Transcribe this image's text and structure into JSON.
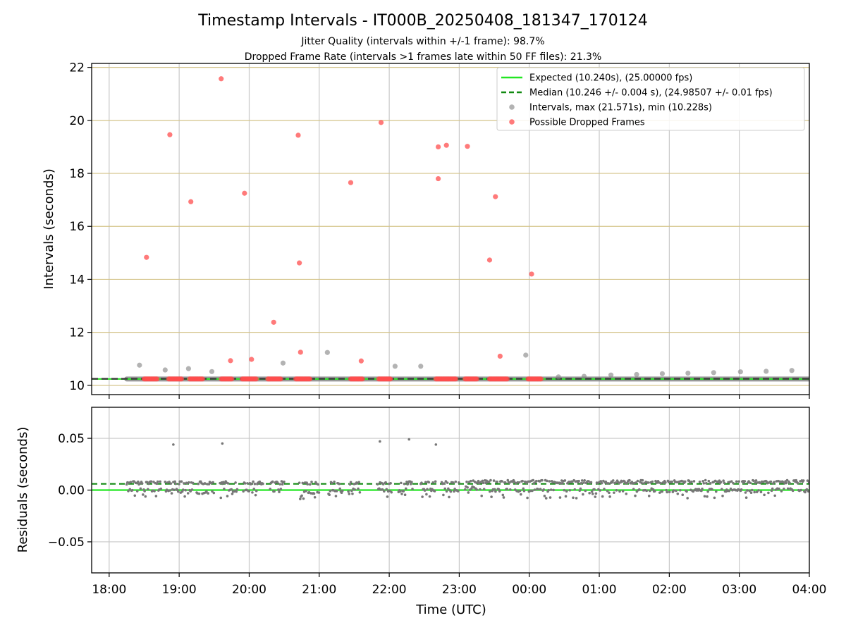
{
  "chart_data": [
    {
      "type": "scatter",
      "title": "Timestamp Intervals - IT000B_20250408_181347_170124",
      "subtitles": [
        "Jitter Quality (intervals within +/-1 frame): 98.7%",
        "Dropped Frame Rate (intervals >1 frames late within 50 FF files): 21.3%"
      ],
      "xlabel": "",
      "ylabel": "Intervals (seconds)",
      "xlim": [
        "17:45",
        "04:00"
      ],
      "ylim": [
        9.65,
        22.15
      ],
      "xticks": [
        "18:00",
        "19:00",
        "20:00",
        "21:00",
        "22:00",
        "23:00",
        "00:00",
        "01:00",
        "02:00",
        "03:00",
        "04:00"
      ],
      "yticks": [
        10,
        12,
        14,
        16,
        18,
        20,
        22
      ],
      "grid": true,
      "legend_position": "top-right",
      "series": [
        {
          "name": "Expected (10.240s), (25.00000 fps)",
          "kind": "line",
          "color": "#22e622",
          "y": 10.24,
          "x_range": [
            "17:45",
            "04:00"
          ]
        },
        {
          "name": "Median (10.246 +/- 0.004 s), (24.98507 +/- 0.01 fps)",
          "kind": "dashed-line",
          "color": "#128a12",
          "y": 10.246,
          "x_range": [
            "17:45",
            "04:00"
          ]
        },
        {
          "name": "Intervals, max (21.571s), min (10.228s)",
          "kind": "scatter",
          "color": "#808080",
          "clusters": [
            [
              "18:15",
              "04:00",
              10.24
            ]
          ],
          "points": [
            [
              "18:26",
              10.76
            ],
            [
              "18:48",
              10.58
            ],
            [
              "19:08",
              10.63
            ],
            [
              "19:28",
              10.52
            ],
            [
              "20:29",
              10.84
            ],
            [
              "21:07",
              11.24
            ],
            [
              "22:05",
              10.72
            ],
            [
              "22:27",
              10.72
            ],
            [
              "23:57",
              11.14
            ],
            [
              "00:25",
              10.32
            ],
            [
              "00:47",
              10.34
            ],
            [
              "01:10",
              10.39
            ],
            [
              "01:32",
              10.41
            ],
            [
              "01:54",
              10.44
            ],
            [
              "02:16",
              10.46
            ],
            [
              "02:38",
              10.48
            ],
            [
              "03:01",
              10.51
            ],
            [
              "03:23",
              10.53
            ],
            [
              "03:45",
              10.56
            ]
          ]
        },
        {
          "name": "Possible Dropped Frames",
          "kind": "scatter",
          "color": "#ff4d4d",
          "clusters": [
            [
              "18:30",
              "18:41",
              10.24
            ],
            [
              "18:51",
              "19:02",
              10.24
            ],
            [
              "19:09",
              "19:20",
              10.24
            ],
            [
              "19:36",
              "19:45",
              10.24
            ],
            [
              "19:54",
              "20:06",
              10.24
            ],
            [
              "20:16",
              "20:27",
              10.24
            ],
            [
              "20:40",
              "20:52",
              10.24
            ],
            [
              "21:27",
              "21:37",
              10.24
            ],
            [
              "21:51",
              "22:01",
              10.24
            ],
            [
              "22:40",
              "22:57",
              10.24
            ],
            [
              "23:05",
              "23:15",
              10.24
            ],
            [
              "23:26",
              "23:41",
              10.24
            ],
            [
              "23:59",
              "00:10",
              10.24
            ]
          ],
          "points": [
            [
              "18:32",
              14.83
            ],
            [
              "18:52",
              19.46
            ],
            [
              "19:10",
              16.93
            ],
            [
              "19:36",
              21.571
            ],
            [
              "19:44",
              10.93
            ],
            [
              "19:56",
              17.25
            ],
            [
              "20:02",
              10.98
            ],
            [
              "20:21",
              12.38
            ],
            [
              "20:42",
              19.44
            ],
            [
              "20:43",
              14.62
            ],
            [
              "20:44",
              11.25
            ],
            [
              "21:27",
              17.65
            ],
            [
              "21:36",
              10.92
            ],
            [
              "21:53",
              19.92
            ],
            [
              "22:42",
              19.0
            ],
            [
              "22:42",
              17.8
            ],
            [
              "22:49",
              19.06
            ],
            [
              "23:07",
              19.02
            ],
            [
              "23:26",
              14.73
            ],
            [
              "23:31",
              17.12
            ],
            [
              "23:35",
              11.1
            ],
            [
              "00:02",
              14.2
            ]
          ]
        }
      ]
    },
    {
      "type": "scatter",
      "title": "",
      "xlabel": "Time (UTC)",
      "ylabel": "Residuals (seconds)",
      "xlim": [
        "17:45",
        "04:00"
      ],
      "ylim": [
        -0.08,
        0.08
      ],
      "xticks": [
        "18:00",
        "19:00",
        "20:00",
        "21:00",
        "22:00",
        "23:00",
        "00:00",
        "01:00",
        "02:00",
        "03:00",
        "04:00"
      ],
      "yticks": [
        0.05,
        0.0,
        -0.05
      ],
      "ytick_labels": [
        "0.05",
        "0.00",
        "−0.05"
      ],
      "grid": true,
      "series": [
        {
          "kind": "line",
          "color": "#22e622",
          "y": 0.0
        },
        {
          "kind": "dashed-line",
          "color": "#128a12",
          "y": 0.006
        },
        {
          "kind": "scatter",
          "color": "#777777",
          "outliers": [
            [
              "18:55",
              0.044
            ],
            [
              "19:37",
              0.045
            ],
            [
              "21:52",
              0.047
            ],
            [
              "22:17",
              0.049
            ],
            [
              "22:40",
              0.044
            ]
          ],
          "segments": [
            [
              "18:15",
              "18:45",
              0.007,
              0.0
            ],
            [
              "18:48",
              "19:12",
              0.007,
              0.0
            ],
            [
              "19:15",
              "19:30",
              0.007,
              -0.002
            ],
            [
              "19:35",
              "19:50",
              0.007,
              0.0
            ],
            [
              "19:55",
              "20:12",
              0.007,
              0.0
            ],
            [
              "20:18",
              "20:30",
              0.007,
              0.0
            ],
            [
              "20:43",
              "21:00",
              0.007,
              -0.002
            ],
            [
              "21:08",
              "21:20",
              0.007,
              0.0
            ],
            [
              "21:25",
              "21:35",
              0.007,
              0.0
            ],
            [
              "21:50",
              "22:02",
              0.007,
              0.0
            ],
            [
              "22:08",
              "22:20",
              0.007,
              0.0
            ],
            [
              "22:27",
              "22:40",
              0.007,
              0.0
            ],
            [
              "22:45",
              "23:00",
              0.007,
              0.0
            ],
            [
              "23:05",
              "23:15",
              0.008,
              0.002
            ],
            [
              "23:15",
              "04:00",
              0.008,
              0.0
            ]
          ]
        }
      ]
    }
  ]
}
